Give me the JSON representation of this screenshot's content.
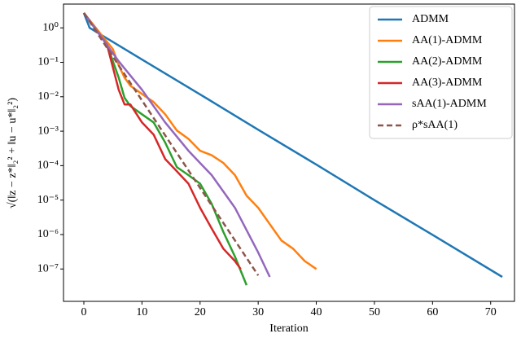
{
  "chart_data": {
    "type": "line",
    "xlabel": "Iteration",
    "ylabel": "√(‖z − z*‖₂² + ‖u − u*‖₂²)",
    "xlim": [
      -3.5,
      74.1
    ],
    "ylim": [
      4.9,
      1.15e-08
    ],
    "yscale": "log",
    "xticks": [
      0,
      10,
      20,
      30,
      40,
      50,
      60,
      70
    ],
    "yticks": [
      {
        "value": 1,
        "label": "10⁰"
      },
      {
        "value": 0.1,
        "label": "10⁻¹"
      },
      {
        "value": 0.01,
        "label": "10⁻²"
      },
      {
        "value": 0.001,
        "label": "10⁻³"
      },
      {
        "value": 0.0001,
        "label": "10⁻⁴"
      },
      {
        "value": 1e-05,
        "label": "10⁻⁵"
      },
      {
        "value": 1e-06,
        "label": "10⁻⁶"
      },
      {
        "value": 1e-07,
        "label": "10⁻⁷"
      }
    ],
    "legend": "upper right",
    "series": [
      {
        "name": "ADMM",
        "color": "#1f77b4",
        "linestyle": "solid",
        "x": [
          0,
          1,
          10,
          20,
          30,
          40,
          50,
          60,
          72
        ],
        "values": [
          2.7,
          1.0,
          0.12,
          0.0117,
          0.0011,
          0.000107,
          1e-05,
          9.8e-07,
          5.9e-08
        ]
      },
      {
        "name": "AA(1)-ADMM",
        "color": "#ff7f0e",
        "linestyle": "solid",
        "x": [
          0,
          5,
          6,
          7,
          8,
          10,
          12,
          14,
          16,
          18,
          20,
          22,
          24,
          26,
          28,
          30,
          32,
          34,
          36,
          38,
          40
        ],
        "values": [
          2.7,
          0.24,
          0.082,
          0.036,
          0.021,
          0.012,
          0.007,
          0.0031,
          0.00105,
          0.0006,
          0.00027,
          0.0002,
          0.00012,
          5.3e-05,
          1.35e-05,
          6e-06,
          2e-06,
          6.7e-07,
          3.9e-07,
          1.7e-07,
          1e-07
        ]
      },
      {
        "name": "AA(2)-ADMM",
        "color": "#2ca02c",
        "linestyle": "solid",
        "x": [
          0,
          4,
          6,
          7,
          8,
          10,
          12,
          14,
          16,
          18,
          20,
          22,
          24,
          26,
          28
        ],
        "values": [
          2.7,
          0.32,
          0.036,
          0.0093,
          0.0054,
          0.0031,
          0.0018,
          0.00047,
          9.1e-05,
          5.3e-05,
          3e-05,
          7.8e-06,
          1.2e-06,
          2.3e-07,
          3.4e-08
        ]
      },
      {
        "name": "AA(3)-ADMM",
        "color": "#d62728",
        "linestyle": "solid",
        "x": [
          0,
          4,
          6,
          7,
          8,
          10,
          12,
          14,
          16,
          18,
          20,
          22,
          24,
          26,
          27
        ],
        "values": [
          2.7,
          0.32,
          0.016,
          0.006,
          0.006,
          0.0018,
          0.0008,
          0.000156,
          6.9e-05,
          3e-05,
          6e-06,
          1.5e-06,
          3.9e-07,
          1.7e-07,
          1e-07
        ]
      },
      {
        "name": "sAA(1)-ADMM",
        "color": "#9467bd",
        "linestyle": "solid",
        "x": [
          0,
          6,
          10,
          14,
          18,
          22,
          26,
          30,
          32
        ],
        "values": [
          2.7,
          0.107,
          0.016,
          0.0018,
          0.00027,
          5.3e-05,
          6e-06,
          3e-07,
          5.9e-08
        ]
      },
      {
        "name": "ρ*sAA(1)",
        "color": "#8c564b",
        "linestyle": "dashed",
        "x": [
          0,
          30
        ],
        "values": [
          2.7,
          6.5e-08
        ]
      }
    ]
  }
}
